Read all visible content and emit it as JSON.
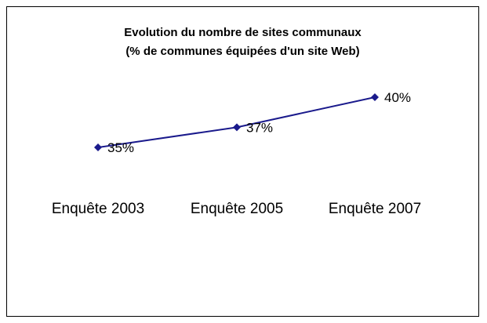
{
  "chart_data": {
    "type": "line",
    "title": "Evolution du nombre de sites communaux",
    "subtitle": "(% de communes équipées d'un site Web)",
    "categories": [
      "Enquête 2003",
      "Enquête 2005",
      "Enquête 2007"
    ],
    "series": [
      {
        "values": [
          35,
          37,
          40
        ],
        "labels": [
          "35%",
          "37%",
          "40%"
        ],
        "color": "#1a1a8c",
        "marker": "diamond"
      }
    ],
    "ylim": [
      30,
      45
    ],
    "grid": false,
    "legend": "none",
    "xlabel": "",
    "ylabel": ""
  }
}
